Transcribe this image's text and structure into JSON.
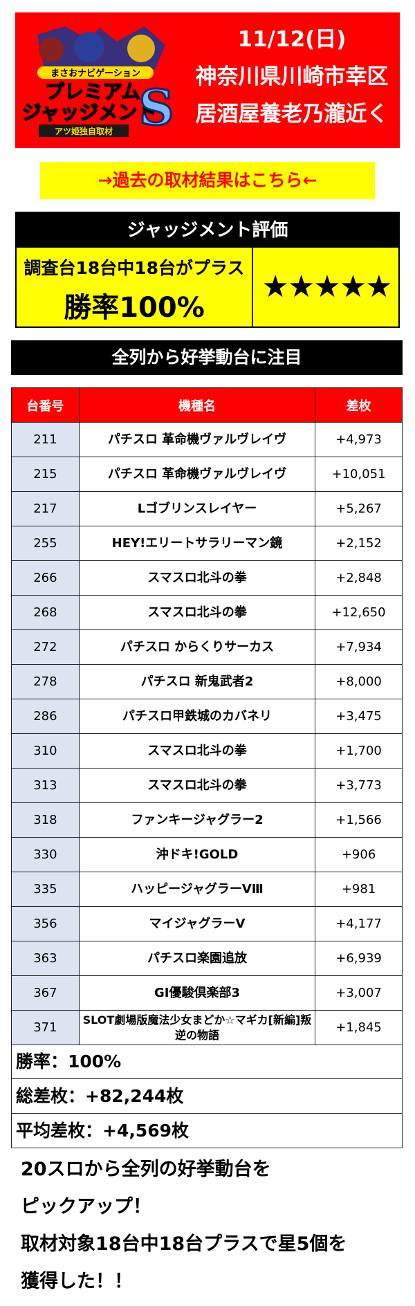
{
  "header": {
    "logo_top": "まさおナビゲーション",
    "logo_main_1": "プレミアム",
    "logo_main_2": "ジャッジメント",
    "logo_s": "S",
    "logo_sub": "アツ姫独自取材",
    "date": "11/12(日)",
    "location_1": "神奈川県川崎市幸区",
    "location_2": "居酒屋養老乃瀧近く"
  },
  "past_link": "→過去の取材結果はこちら←",
  "evaluation": {
    "title": "ジャッジメント評価",
    "line1": "調査台18台中18台がプラス",
    "line2": "勝率100%",
    "stars": "★★★★★"
  },
  "section_title": "全列から好挙動台に注目",
  "table": {
    "headers": [
      "台番号",
      "機種名",
      "差枚"
    ],
    "rows": [
      {
        "num": "211",
        "name": "パチスロ 革命機ヴァルヴレイヴ",
        "diff": "+4,973"
      },
      {
        "num": "215",
        "name": "パチスロ 革命機ヴァルヴレイヴ",
        "diff": "+10,051"
      },
      {
        "num": "217",
        "name": "Lゴブリンスレイヤー",
        "diff": "+5,267"
      },
      {
        "num": "255",
        "name": "HEY!エリートサラリーマン鏡",
        "diff": "+2,152"
      },
      {
        "num": "266",
        "name": "スマスロ北斗の拳",
        "diff": "+2,848"
      },
      {
        "num": "268",
        "name": "スマスロ北斗の拳",
        "diff": "+12,650"
      },
      {
        "num": "272",
        "name": "パチスロ からくりサーカス",
        "diff": "+7,934"
      },
      {
        "num": "278",
        "name": "パチスロ 新鬼武者2",
        "diff": "+8,000"
      },
      {
        "num": "286",
        "name": "パチスロ甲鉄城のカバネリ",
        "diff": "+3,475"
      },
      {
        "num": "310",
        "name": "スマスロ北斗の拳",
        "diff": "+1,700"
      },
      {
        "num": "313",
        "name": "スマスロ北斗の拳",
        "diff": "+3,773"
      },
      {
        "num": "318",
        "name": "ファンキージャグラー2",
        "diff": "+1,566"
      },
      {
        "num": "330",
        "name": "沖ドキ!GOLD",
        "diff": "+906"
      },
      {
        "num": "335",
        "name": "ハッピージャグラーVⅢ",
        "diff": "+981"
      },
      {
        "num": "356",
        "name": "マイジャグラーV",
        "diff": "+4,177"
      },
      {
        "num": "363",
        "name": "パチスロ楽園追放",
        "diff": "+6,939"
      },
      {
        "num": "367",
        "name": "GI優駿倶楽部3",
        "diff": "+3,007"
      },
      {
        "num": "371",
        "name": "SLOT劇場版魔法少女まどか☆マギカ[新編]叛逆の物語",
        "diff": "+1,845"
      }
    ]
  },
  "summary": {
    "win_rate": "勝率：100%",
    "total": "総差枚：+82,244枚",
    "average": "平均差枚：+4,569枚"
  },
  "footer": {
    "line1": "20スロから全列の好挙動台を",
    "line2": "ピックアップ！",
    "line3": "取材対象18台中18台プラスで星5個を",
    "line4": "獲得した！！"
  },
  "colors": {
    "red": "#ff0000",
    "yellow": "#ffff00",
    "row_number_bg": "#dde3f0"
  }
}
